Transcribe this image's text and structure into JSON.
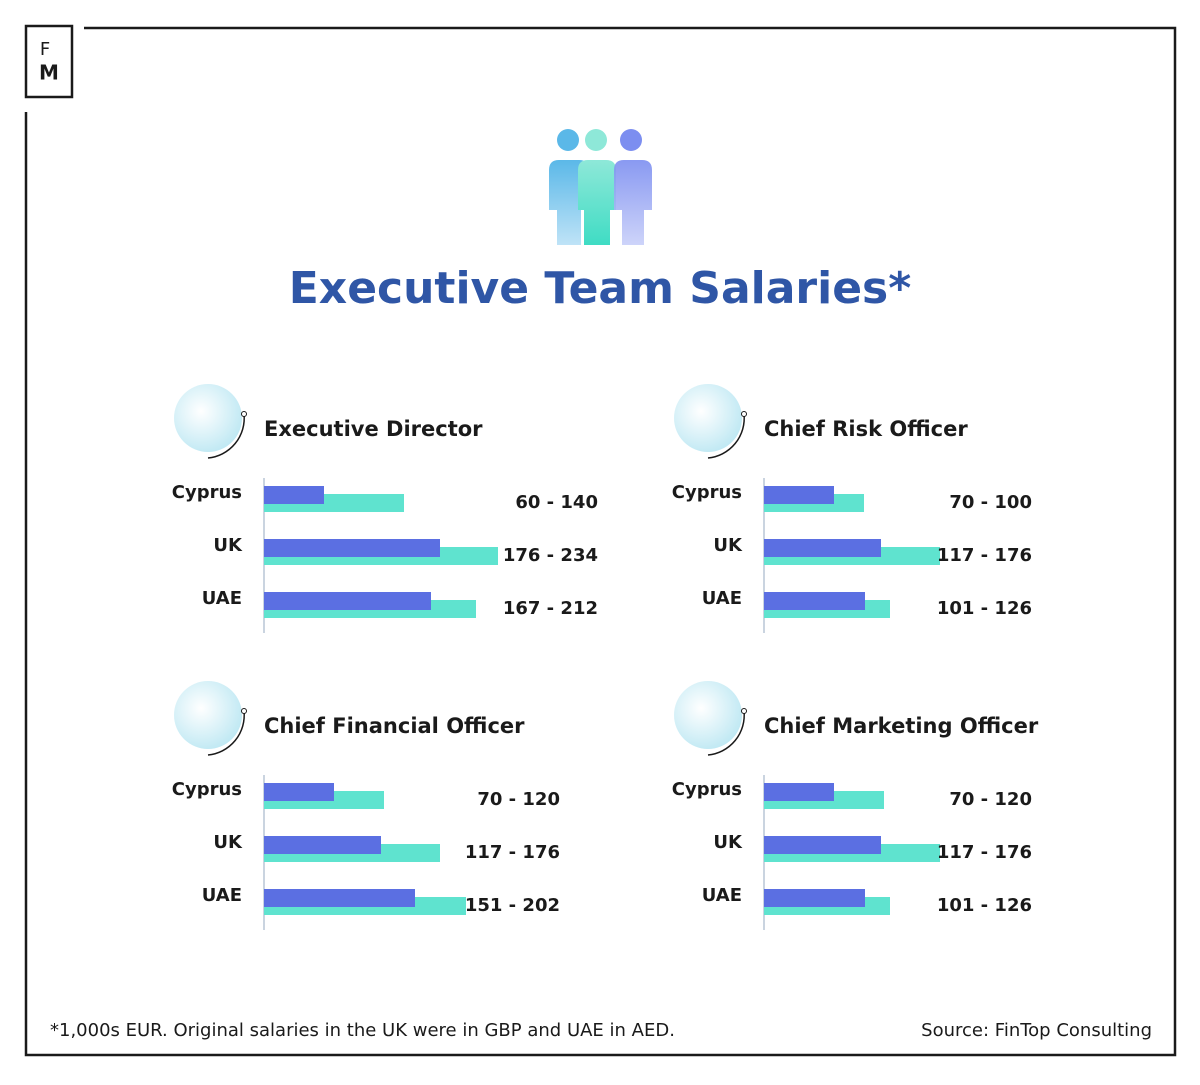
{
  "logo": {
    "top": "F",
    "bottom": "M"
  },
  "title": "Executive Team Salaries*",
  "footnote": "*1,000s EUR. Original salaries in the UK were in GBP and UAE in AED.",
  "source": "Source: FinTop Consulting",
  "chart_data": [
    {
      "type": "bar",
      "title": "Executive Director",
      "categories": [
        "Cyprus",
        "UK",
        "UAE"
      ],
      "series": [
        {
          "color": "#5b6fe2",
          "values": [
            60,
            176,
            167
          ]
        },
        {
          "color": "#5fe3cf",
          "values": [
            140,
            234,
            212
          ]
        }
      ],
      "value_labels": [
        "60 - 140",
        "176 - 234",
        "167 - 212"
      ]
    },
    {
      "type": "bar",
      "title": "Chief Risk Officer",
      "categories": [
        "Cyprus",
        "UK",
        "UAE"
      ],
      "series": [
        {
          "color": "#5b6fe2",
          "values": [
            70,
            117,
            101
          ]
        },
        {
          "color": "#5fe3cf",
          "values": [
            100,
            176,
            126
          ]
        }
      ],
      "value_labels": [
        "70 - 100",
        "117 - 176",
        "101 - 126"
      ]
    },
    {
      "type": "bar",
      "title": "Chief Financial Officer",
      "categories": [
        "Cyprus",
        "UK",
        "UAE"
      ],
      "series": [
        {
          "color": "#5b6fe2",
          "values": [
            70,
            117,
            151
          ]
        },
        {
          "color": "#5fe3cf",
          "values": [
            120,
            176,
            202
          ]
        }
      ],
      "value_labels": [
        "70 - 120",
        "117 - 176",
        "151 - 202"
      ]
    },
    {
      "type": "bar",
      "title": "Chief Marketing Officer",
      "categories": [
        "Cyprus",
        "UK",
        "UAE"
      ],
      "series": [
        {
          "color": "#5b6fe2",
          "values": [
            70,
            117,
            101
          ]
        },
        {
          "color": "#5fe3cf",
          "values": [
            120,
            176,
            126
          ]
        }
      ],
      "value_labels": [
        "70 - 120",
        "117 - 176",
        "101 - 126"
      ]
    }
  ]
}
